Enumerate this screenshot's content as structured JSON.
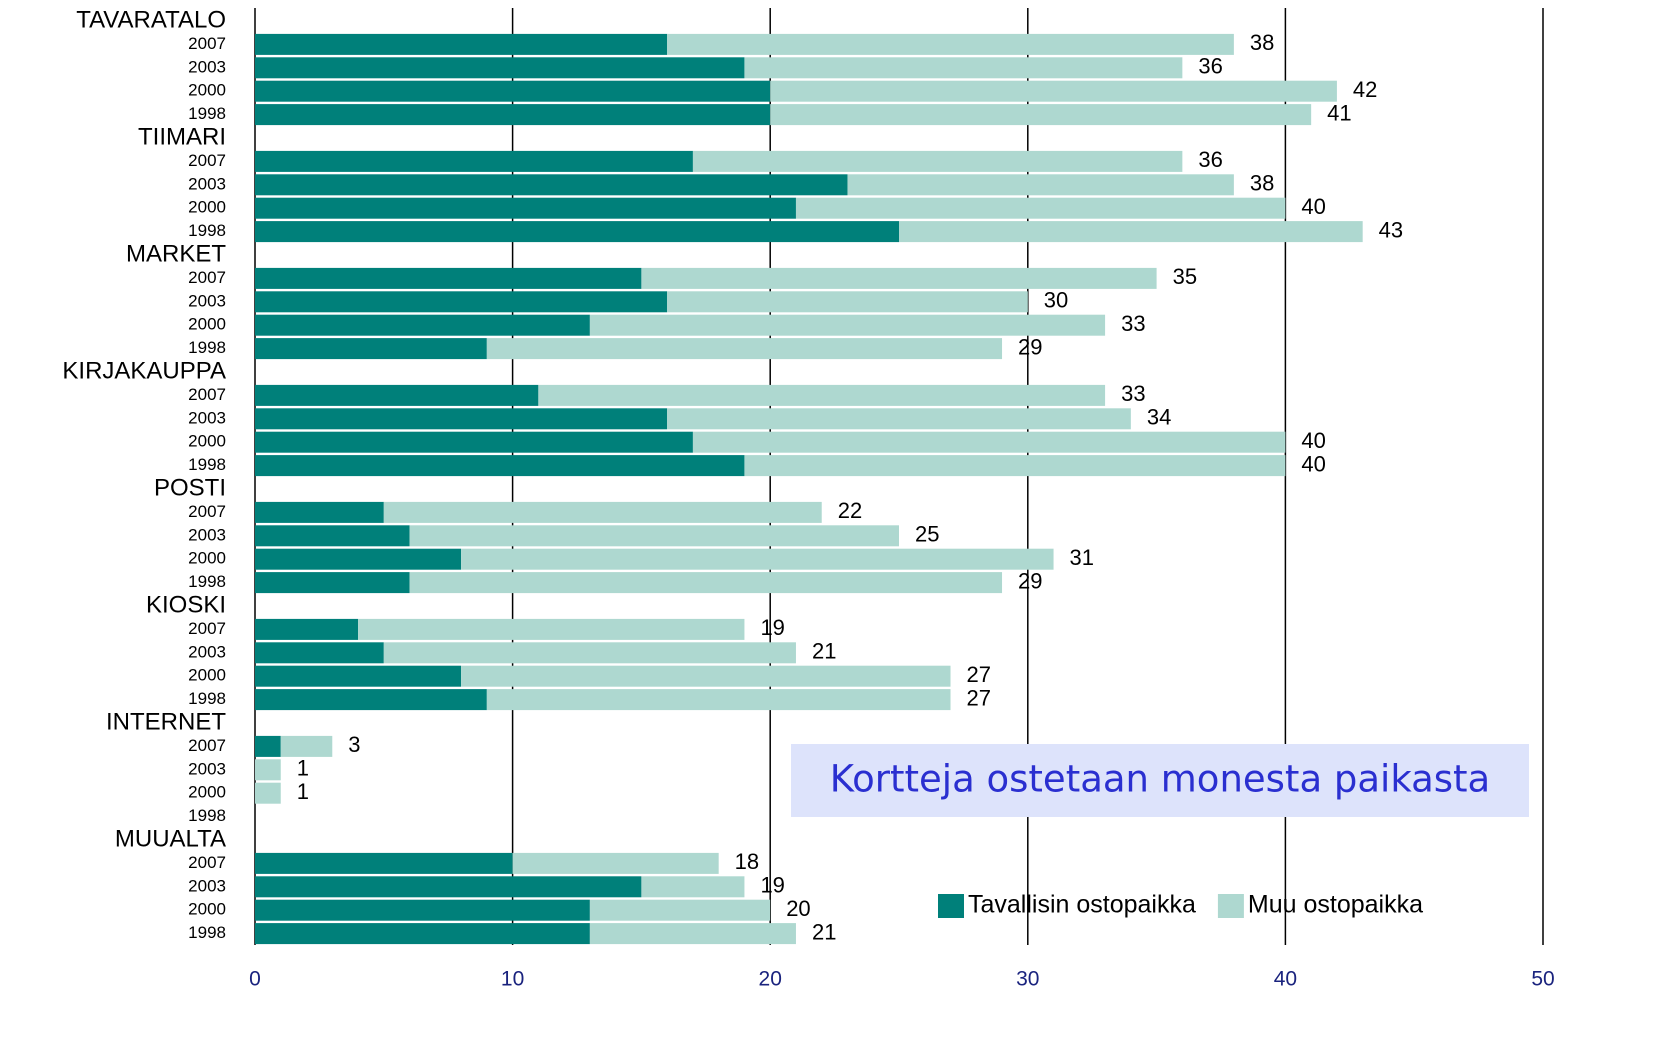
{
  "chart_data": {
    "type": "bar",
    "orientation": "horizontal",
    "stacked": true,
    "annotation": "Kortteja ostetaan monesta paikasta",
    "groups": [
      {
        "name": "TAVARATALO",
        "categories": [
          "2007",
          "2003",
          "2000",
          "1998"
        ]
      },
      {
        "name": "TIIMARI",
        "categories": [
          "2007",
          "2003",
          "2000",
          "1998"
        ]
      },
      {
        "name": "MARKET",
        "categories": [
          "2007",
          "2003",
          "2000",
          "1998"
        ]
      },
      {
        "name": "KIRJAKAUPPA",
        "categories": [
          "2007",
          "2003",
          "2000",
          "1998"
        ]
      },
      {
        "name": "POSTI",
        "categories": [
          "2007",
          "2003",
          "2000",
          "1998"
        ]
      },
      {
        "name": "KIOSKI",
        "categories": [
          "2007",
          "2003",
          "2000",
          "1998"
        ]
      },
      {
        "name": "INTERNET",
        "categories": [
          "2007",
          "2003",
          "2000",
          "1998"
        ]
      },
      {
        "name": "MUUALTA",
        "categories": [
          "2007",
          "2003",
          "2000",
          "1998"
        ]
      }
    ],
    "series": [
      {
        "name": "Tavallisin ostopaikka",
        "color": "#00807a",
        "values": [
          16,
          19,
          20,
          20,
          17,
          23,
          21,
          25,
          15,
          16,
          13,
          9,
          11,
          16,
          17,
          19,
          5,
          6,
          8,
          6,
          4,
          5,
          8,
          9,
          1,
          0,
          0,
          null,
          10,
          15,
          13,
          13
        ]
      },
      {
        "name": "Muu ostopaikka",
        "color": "#aed8d0",
        "values": [
          22,
          17,
          22,
          21,
          19,
          15,
          19,
          18,
          20,
          14,
          20,
          20,
          22,
          18,
          23,
          21,
          17,
          19,
          23,
          23,
          15,
          16,
          19,
          18,
          2,
          1,
          1,
          null,
          8,
          4,
          7,
          8
        ]
      }
    ],
    "totals": [
      38,
      36,
      42,
      41,
      36,
      38,
      40,
      43,
      35,
      30,
      33,
      29,
      33,
      34,
      40,
      40,
      22,
      25,
      31,
      29,
      19,
      21,
      27,
      27,
      3,
      1,
      1,
      null,
      18,
      19,
      20,
      21
    ],
    "xlim": [
      0,
      50
    ],
    "xticks": [
      0,
      10,
      20,
      30,
      40,
      50
    ],
    "grid": true,
    "legend": "lower right"
  }
}
